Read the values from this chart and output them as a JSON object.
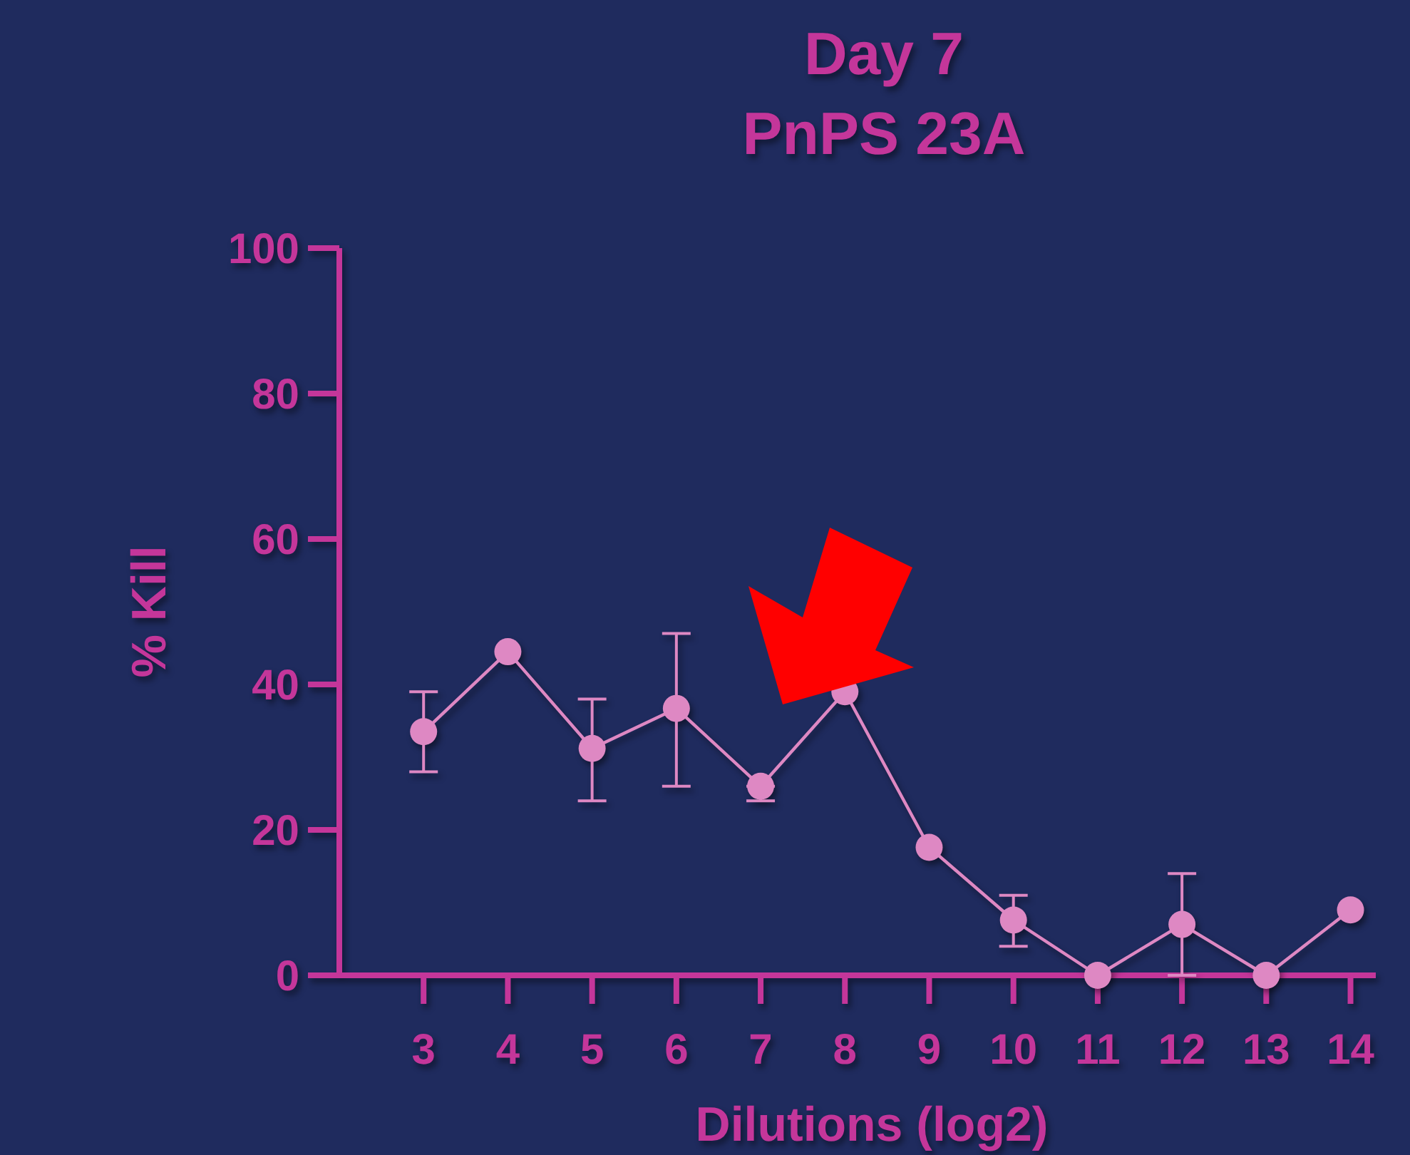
{
  "chart_data": {
    "type": "line",
    "title": "Day 7",
    "subtitle": "PnPS 23A",
    "xlabel": "Dilutions (log2)",
    "ylabel": "% Kill",
    "x": [
      3,
      4,
      5,
      6,
      7,
      8,
      9,
      10,
      11,
      12,
      13,
      14
    ],
    "series": [
      {
        "color": "#de88c3",
        "values": [
          33.5,
          44.5,
          31.2,
          36.7,
          26,
          39,
          17.6,
          7.6,
          0,
          7,
          0,
          9
        ],
        "errors": [
          [
            28,
            39
          ],
          null,
          [
            24,
            38
          ],
          [
            26,
            47
          ],
          [
            24,
            26
          ],
          null,
          null,
          [
            4,
            11
          ],
          null,
          [
            0,
            14
          ],
          null,
          null
        ]
      }
    ],
    "xlim": [
      2,
      14.3
    ],
    "xticks": [
      3,
      4,
      5,
      6,
      7,
      8,
      9,
      10,
      11,
      12,
      13,
      14
    ],
    "ylim": [
      0,
      100
    ],
    "yticks": [
      0,
      20,
      40,
      60,
      80,
      100
    ],
    "grid": false,
    "marker": "circle",
    "line_style": "solid"
  }
}
